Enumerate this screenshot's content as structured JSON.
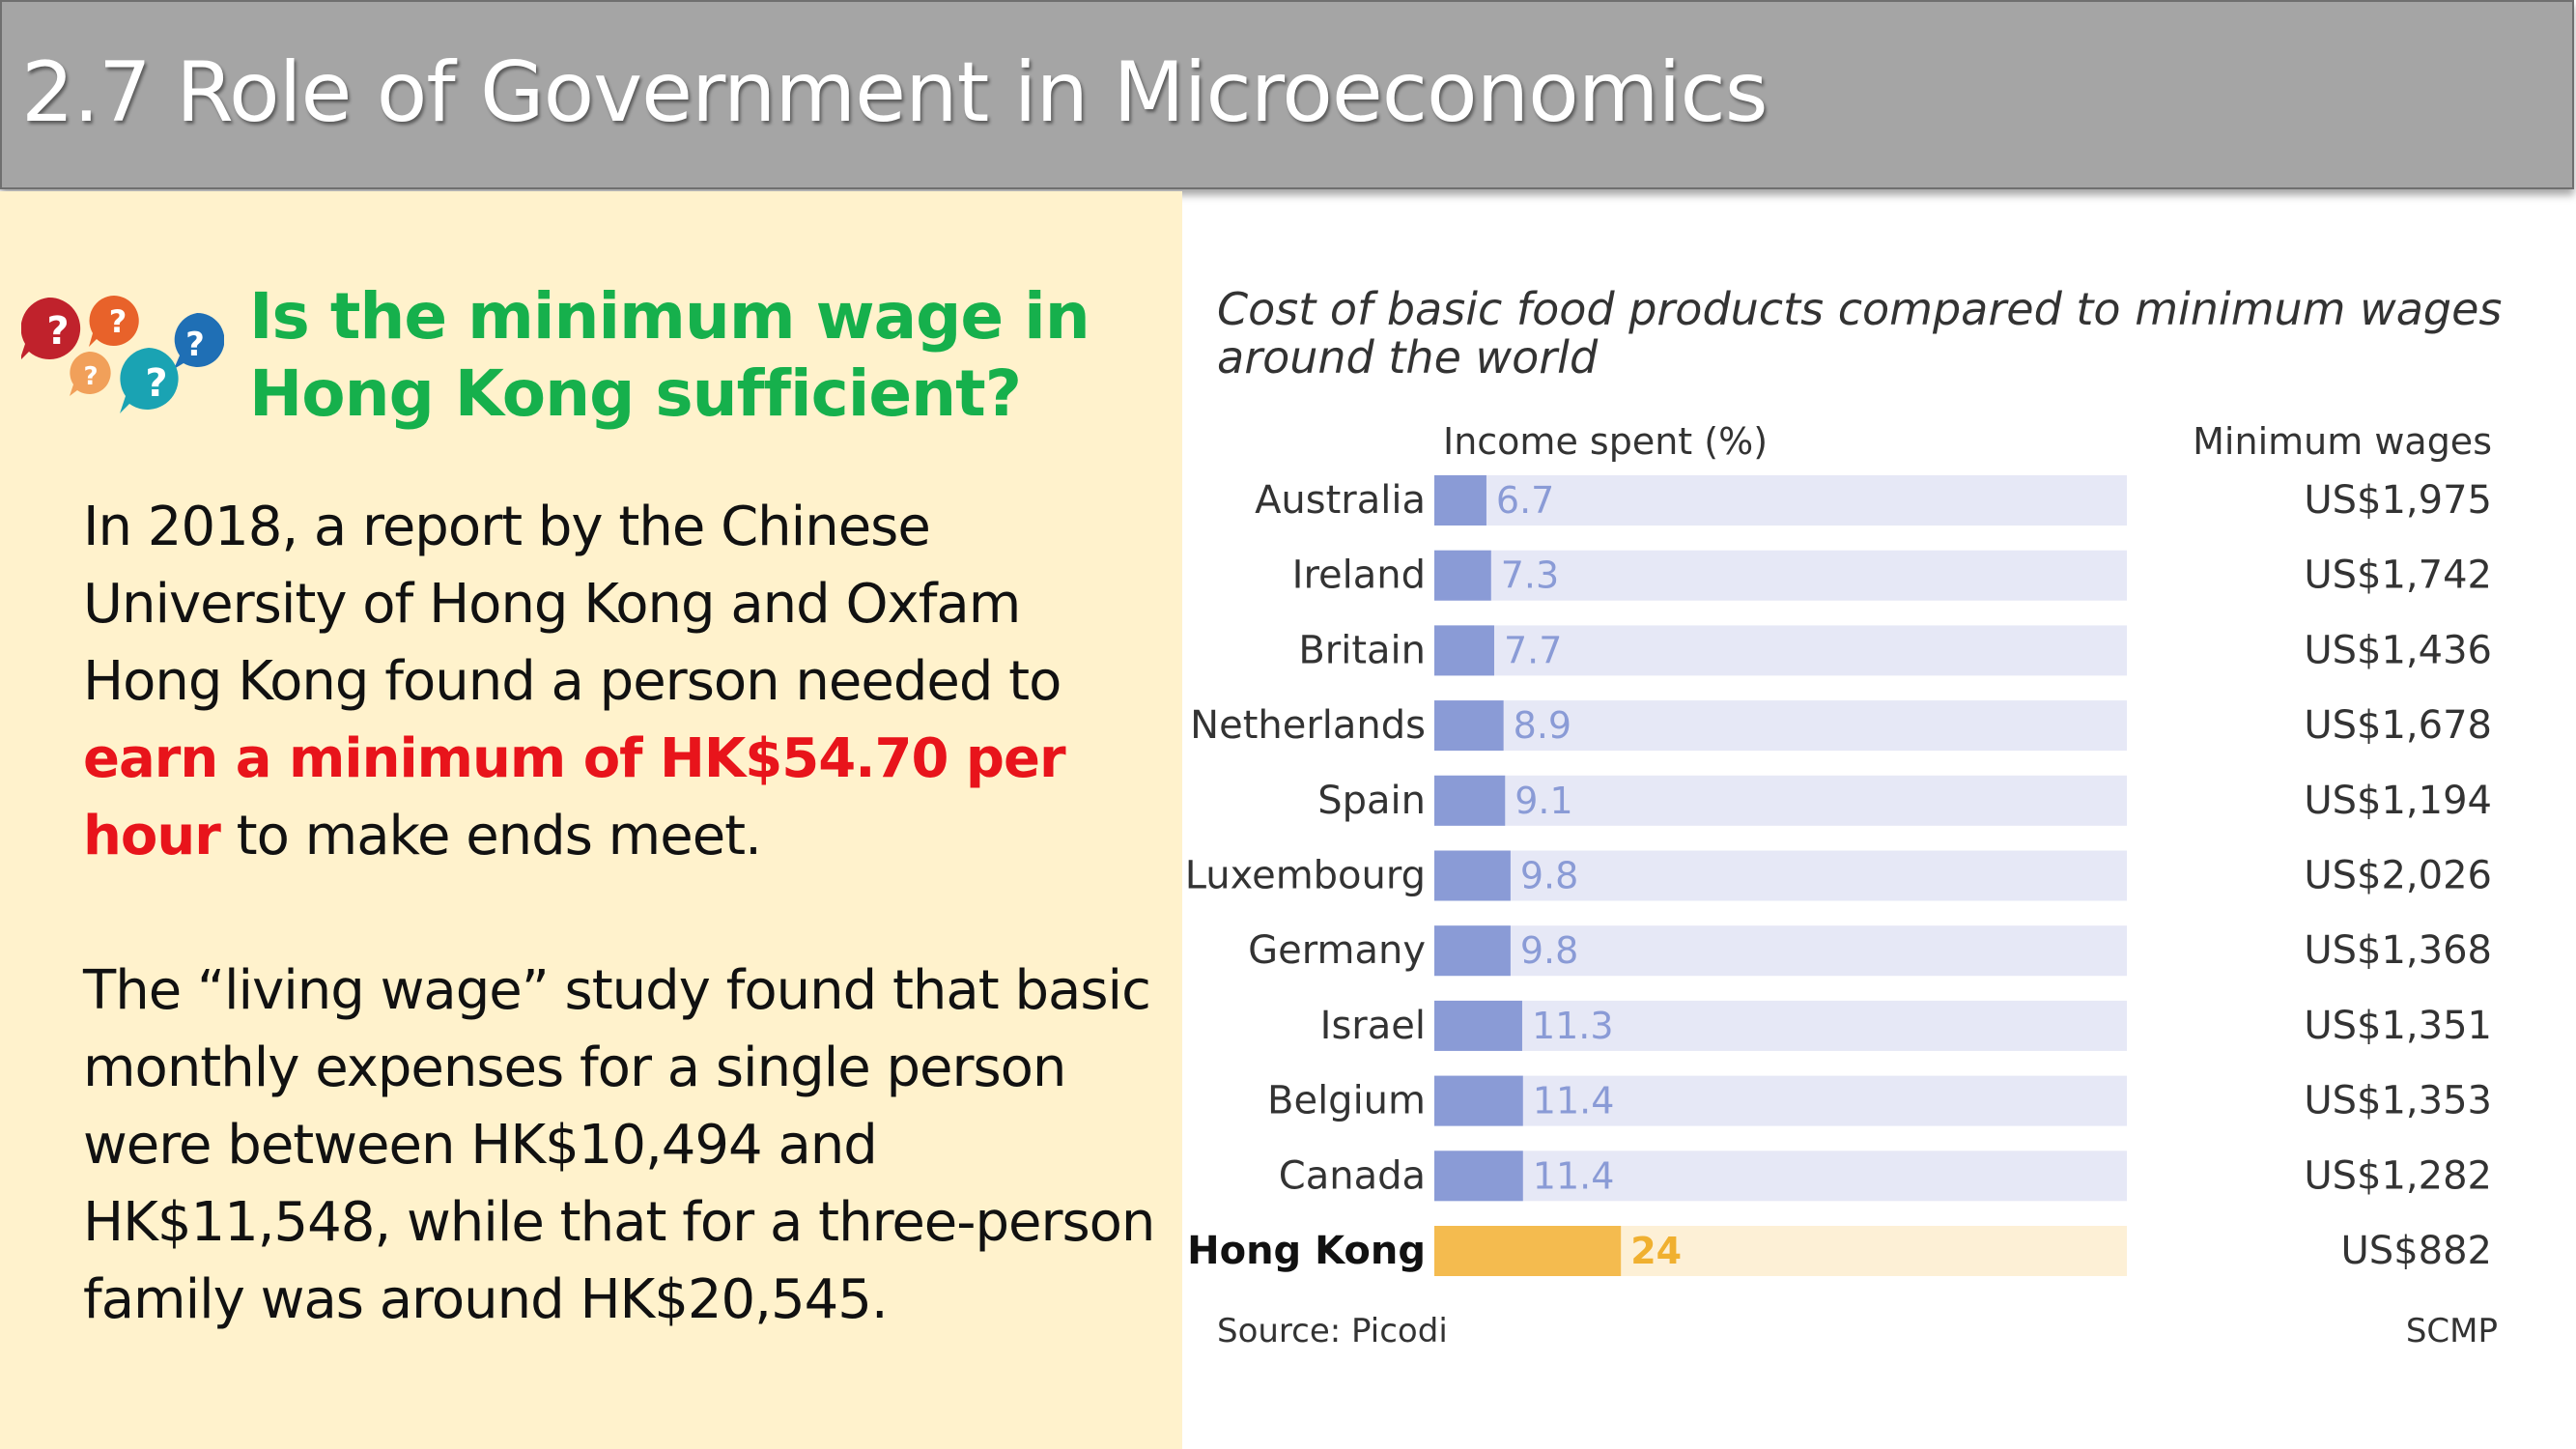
{
  "slide": {
    "title": "2.7 Role of Government in Microeconomics",
    "question": "Is the minimum wage in Hong Kong sufficient?",
    "paragraph1": {
      "before": "In 2018, a report by the Chinese University of Hong Kong and Oxfam Hong Kong found a person needed to",
      "highlight": "earn a minimum of HK$54.70 per hour",
      "after": "to make ends meet."
    },
    "paragraph2": "The “living wage” study found that basic monthly expenses for a single person were between HK$10,494 and HK$11,548, while that for a three-person family was around HK$20,545.",
    "colors": {
      "title_bar": "#a5a5a5",
      "left_panel": "#fff2cc",
      "heading": "#16b04c",
      "highlight": "#e8141b"
    }
  },
  "chart_data": {
    "type": "bar",
    "orientation": "horizontal",
    "title": "Cost of basic food products compared to minimum wages around the world",
    "title_lines": [
      "Cost of basic food products compared to minimum wages",
      "around the world"
    ],
    "value_header": "Income spent (%)",
    "wage_header": "Minimum wages",
    "categories": [
      "Australia",
      "Ireland",
      "Britain",
      "Netherlands",
      "Spain",
      "Luxembourg",
      "Germany",
      "Israel",
      "Belgium",
      "Canada",
      "Hong Kong"
    ],
    "values": [
      6.7,
      7.3,
      7.7,
      8.9,
      9.1,
      9.8,
      9.8,
      11.3,
      11.4,
      11.4,
      24
    ],
    "value_labels": [
      "6.7",
      "7.3",
      "7.7",
      "8.9",
      "9.1",
      "9.8",
      "9.8",
      "11.3",
      "11.4",
      "11.4",
      "24"
    ],
    "minimum_wages": [
      "US$1,975",
      "US$1,742",
      "US$1,436",
      "US$1,678",
      "US$1,194",
      "US$2,026",
      "US$1,368",
      "US$1,351",
      "US$1,353",
      "US$1,282",
      "US$882"
    ],
    "highlight_category": "Hong Kong",
    "xlim": [
      0,
      100
    ],
    "grid": false,
    "legend": "none",
    "source": "Source: Picodi",
    "credit": "SCMP",
    "colors": {
      "bar": "#8a9bd6",
      "bar_track": "#e6e8f6",
      "label": "#8a9bd6",
      "highlight_bar": "#f4bb4f",
      "highlight_track": "#fdf0d6",
      "highlight_label": "#f0b030"
    }
  }
}
